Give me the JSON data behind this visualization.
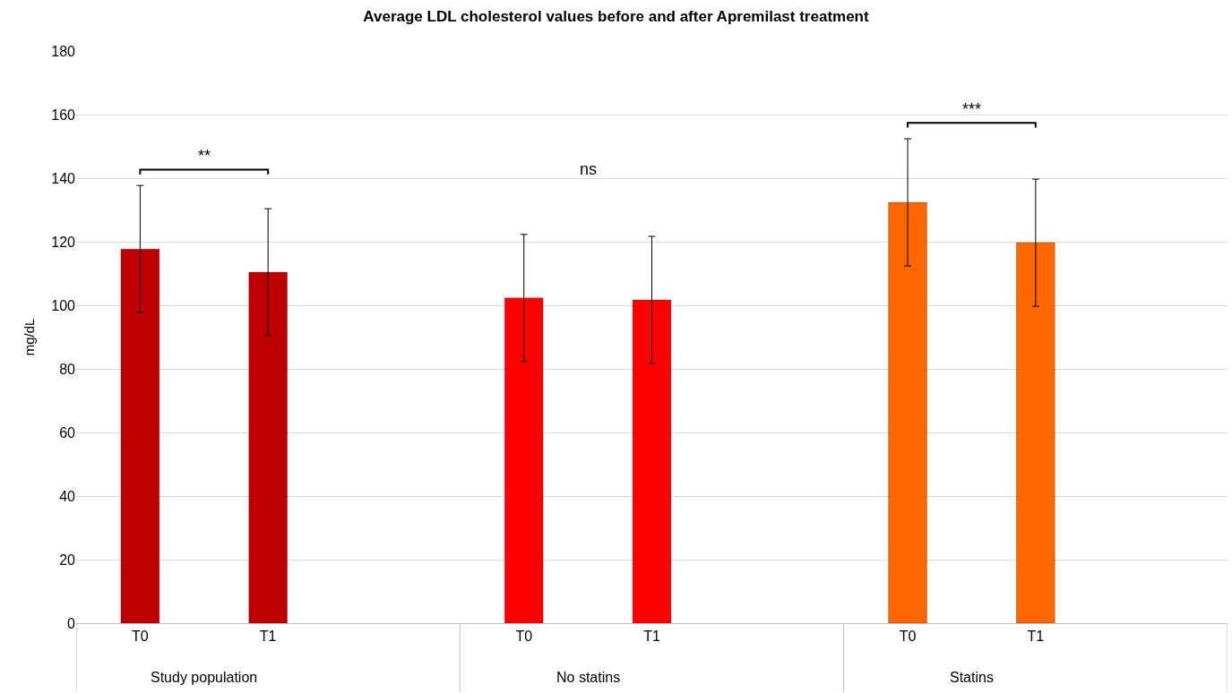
{
  "chart_data": {
    "type": "bar",
    "title": "Average LDL cholesterol values before and after Apremilast treatment",
    "ylabel": "mg/dL",
    "categories": [
      "T0",
      "T1",
      "T0",
      "T1",
      "T0",
      "T1"
    ],
    "values": [
      117.7,
      110.4,
      102.3,
      101.7,
      132.4,
      119.7
    ],
    "errors": [
      20,
      20,
      20,
      20,
      20,
      20
    ],
    "colors": [
      "#c00000",
      "#c00000",
      "#ff0000",
      "#ff0000",
      "#ff6600",
      "#ff6600"
    ],
    "ylim": [
      0,
      180
    ],
    "yticks": [
      0,
      20,
      40,
      60,
      80,
      100,
      120,
      140,
      160,
      180
    ],
    "grid": "y",
    "annotations": [
      "**",
      "ns",
      "***",
      "Study population",
      "No statins",
      "Statins"
    ]
  }
}
